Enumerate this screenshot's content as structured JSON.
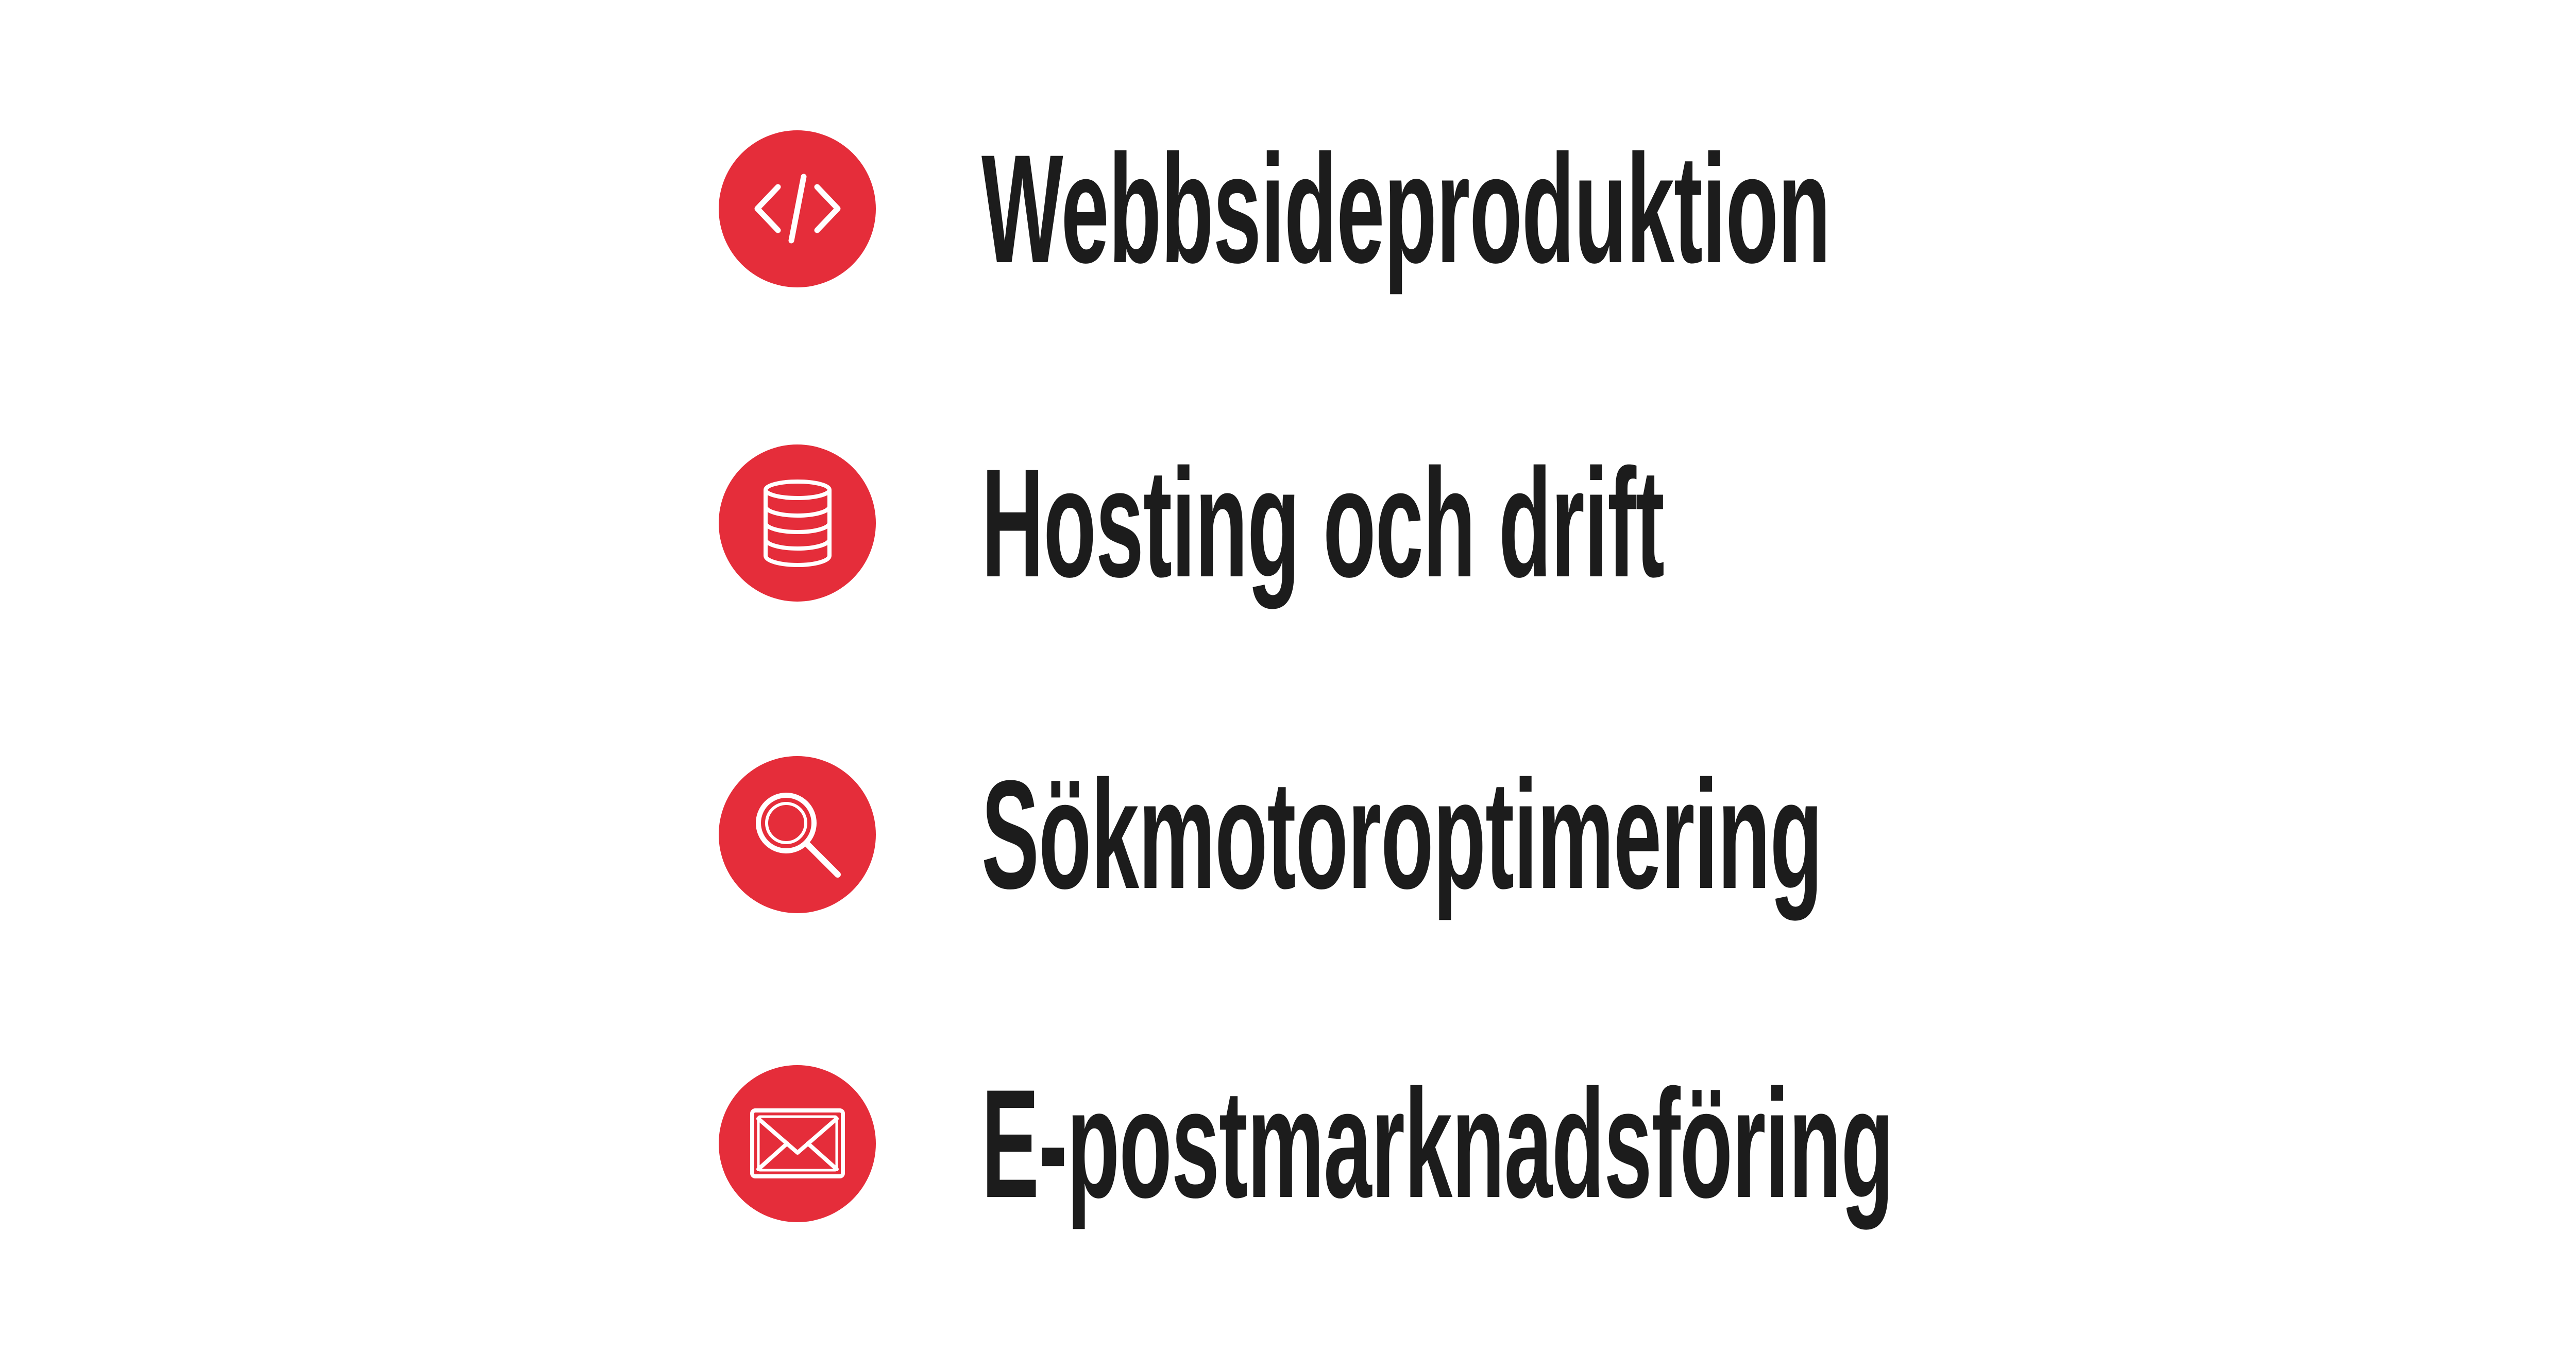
{
  "accent_color": "#e52d3a",
  "text_color": "#1c1c1c",
  "services": [
    {
      "icon": "code-icon",
      "label": "Webbsideproduktion"
    },
    {
      "icon": "database-icon",
      "label": "Hosting och drift"
    },
    {
      "icon": "search-icon",
      "label": "Sökmotoroptimering"
    },
    {
      "icon": "mail-icon",
      "label": "E-postmarknadsföring"
    }
  ]
}
